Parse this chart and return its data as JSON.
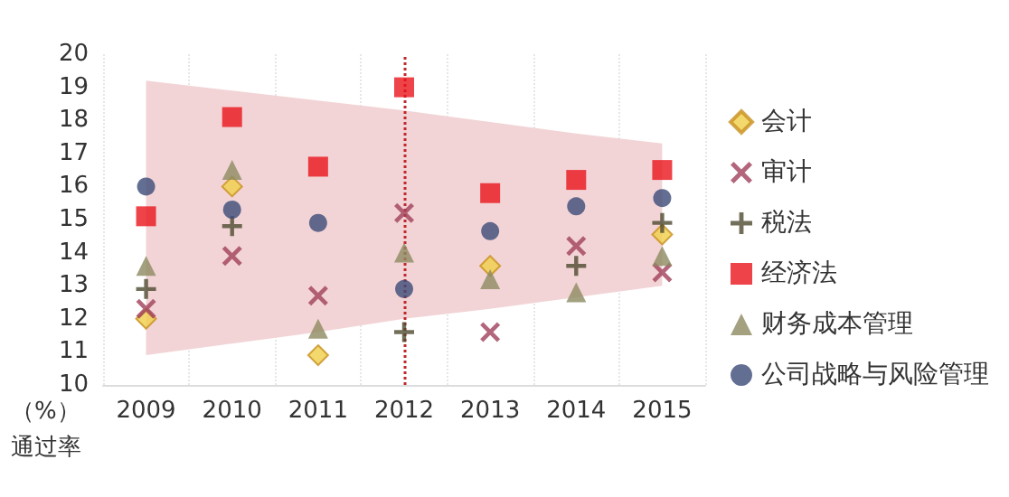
{
  "chart_data": {
    "type": "scatter",
    "ylabel": "（%）通过率",
    "categories": [
      "2009",
      "2010",
      "2011",
      "2012",
      "2013",
      "2014",
      "2015"
    ],
    "ylim": [
      10,
      20
    ],
    "yticks": [
      10,
      11,
      12,
      13,
      14,
      15,
      16,
      17,
      18,
      19,
      20
    ],
    "grid": "x",
    "legend": "right",
    "ref_lines": [
      {
        "axis": "x",
        "value": "2012",
        "color": "#c0282c",
        "line_style": "dotted"
      }
    ],
    "series": [
      {
        "type": "line",
        "color": "#f2d4d6",
        "values": [
          null,
          null,
          null,
          null,
          null,
          null,
          null
        ],
        "lower": [
          10.9,
          11.25,
          11.6,
          12.0,
          12.3,
          12.65,
          13.0
        ],
        "upper": [
          19.2,
          18.9,
          18.6,
          18.3,
          17.95,
          17.6,
          17.3
        ]
      },
      {
        "name": "会计",
        "color": "#f0d048",
        "marker": "diamond",
        "values": [
          12.0,
          16.0,
          10.9,
          null,
          13.6,
          null,
          14.55
        ]
      },
      {
        "name": "审计",
        "color": "#a0405a",
        "marker": "cross",
        "values": [
          12.3,
          13.9,
          12.7,
          15.2,
          11.6,
          14.2,
          13.4
        ]
      },
      {
        "name": "税法",
        "color": "#4e4a30",
        "marker": "plus",
        "values": [
          12.9,
          14.8,
          null,
          11.6,
          null,
          13.6,
          14.9
        ]
      },
      {
        "name": "经济法",
        "color": "#e8141c",
        "marker": "square",
        "values": [
          15.1,
          18.1,
          16.6,
          19.0,
          15.8,
          16.2,
          16.5
        ]
      },
      {
        "name": "财务成本管理",
        "color": "#8c8a60",
        "marker": "triangle",
        "values": [
          13.6,
          16.5,
          11.7,
          14.0,
          13.2,
          12.8,
          13.9
        ]
      },
      {
        "name": "公司战略与风险管理",
        "color": "#3c4a78",
        "marker": "circle",
        "values": [
          16.0,
          15.3,
          14.9,
          12.9,
          14.65,
          15.4,
          15.65
        ]
      }
    ]
  }
}
